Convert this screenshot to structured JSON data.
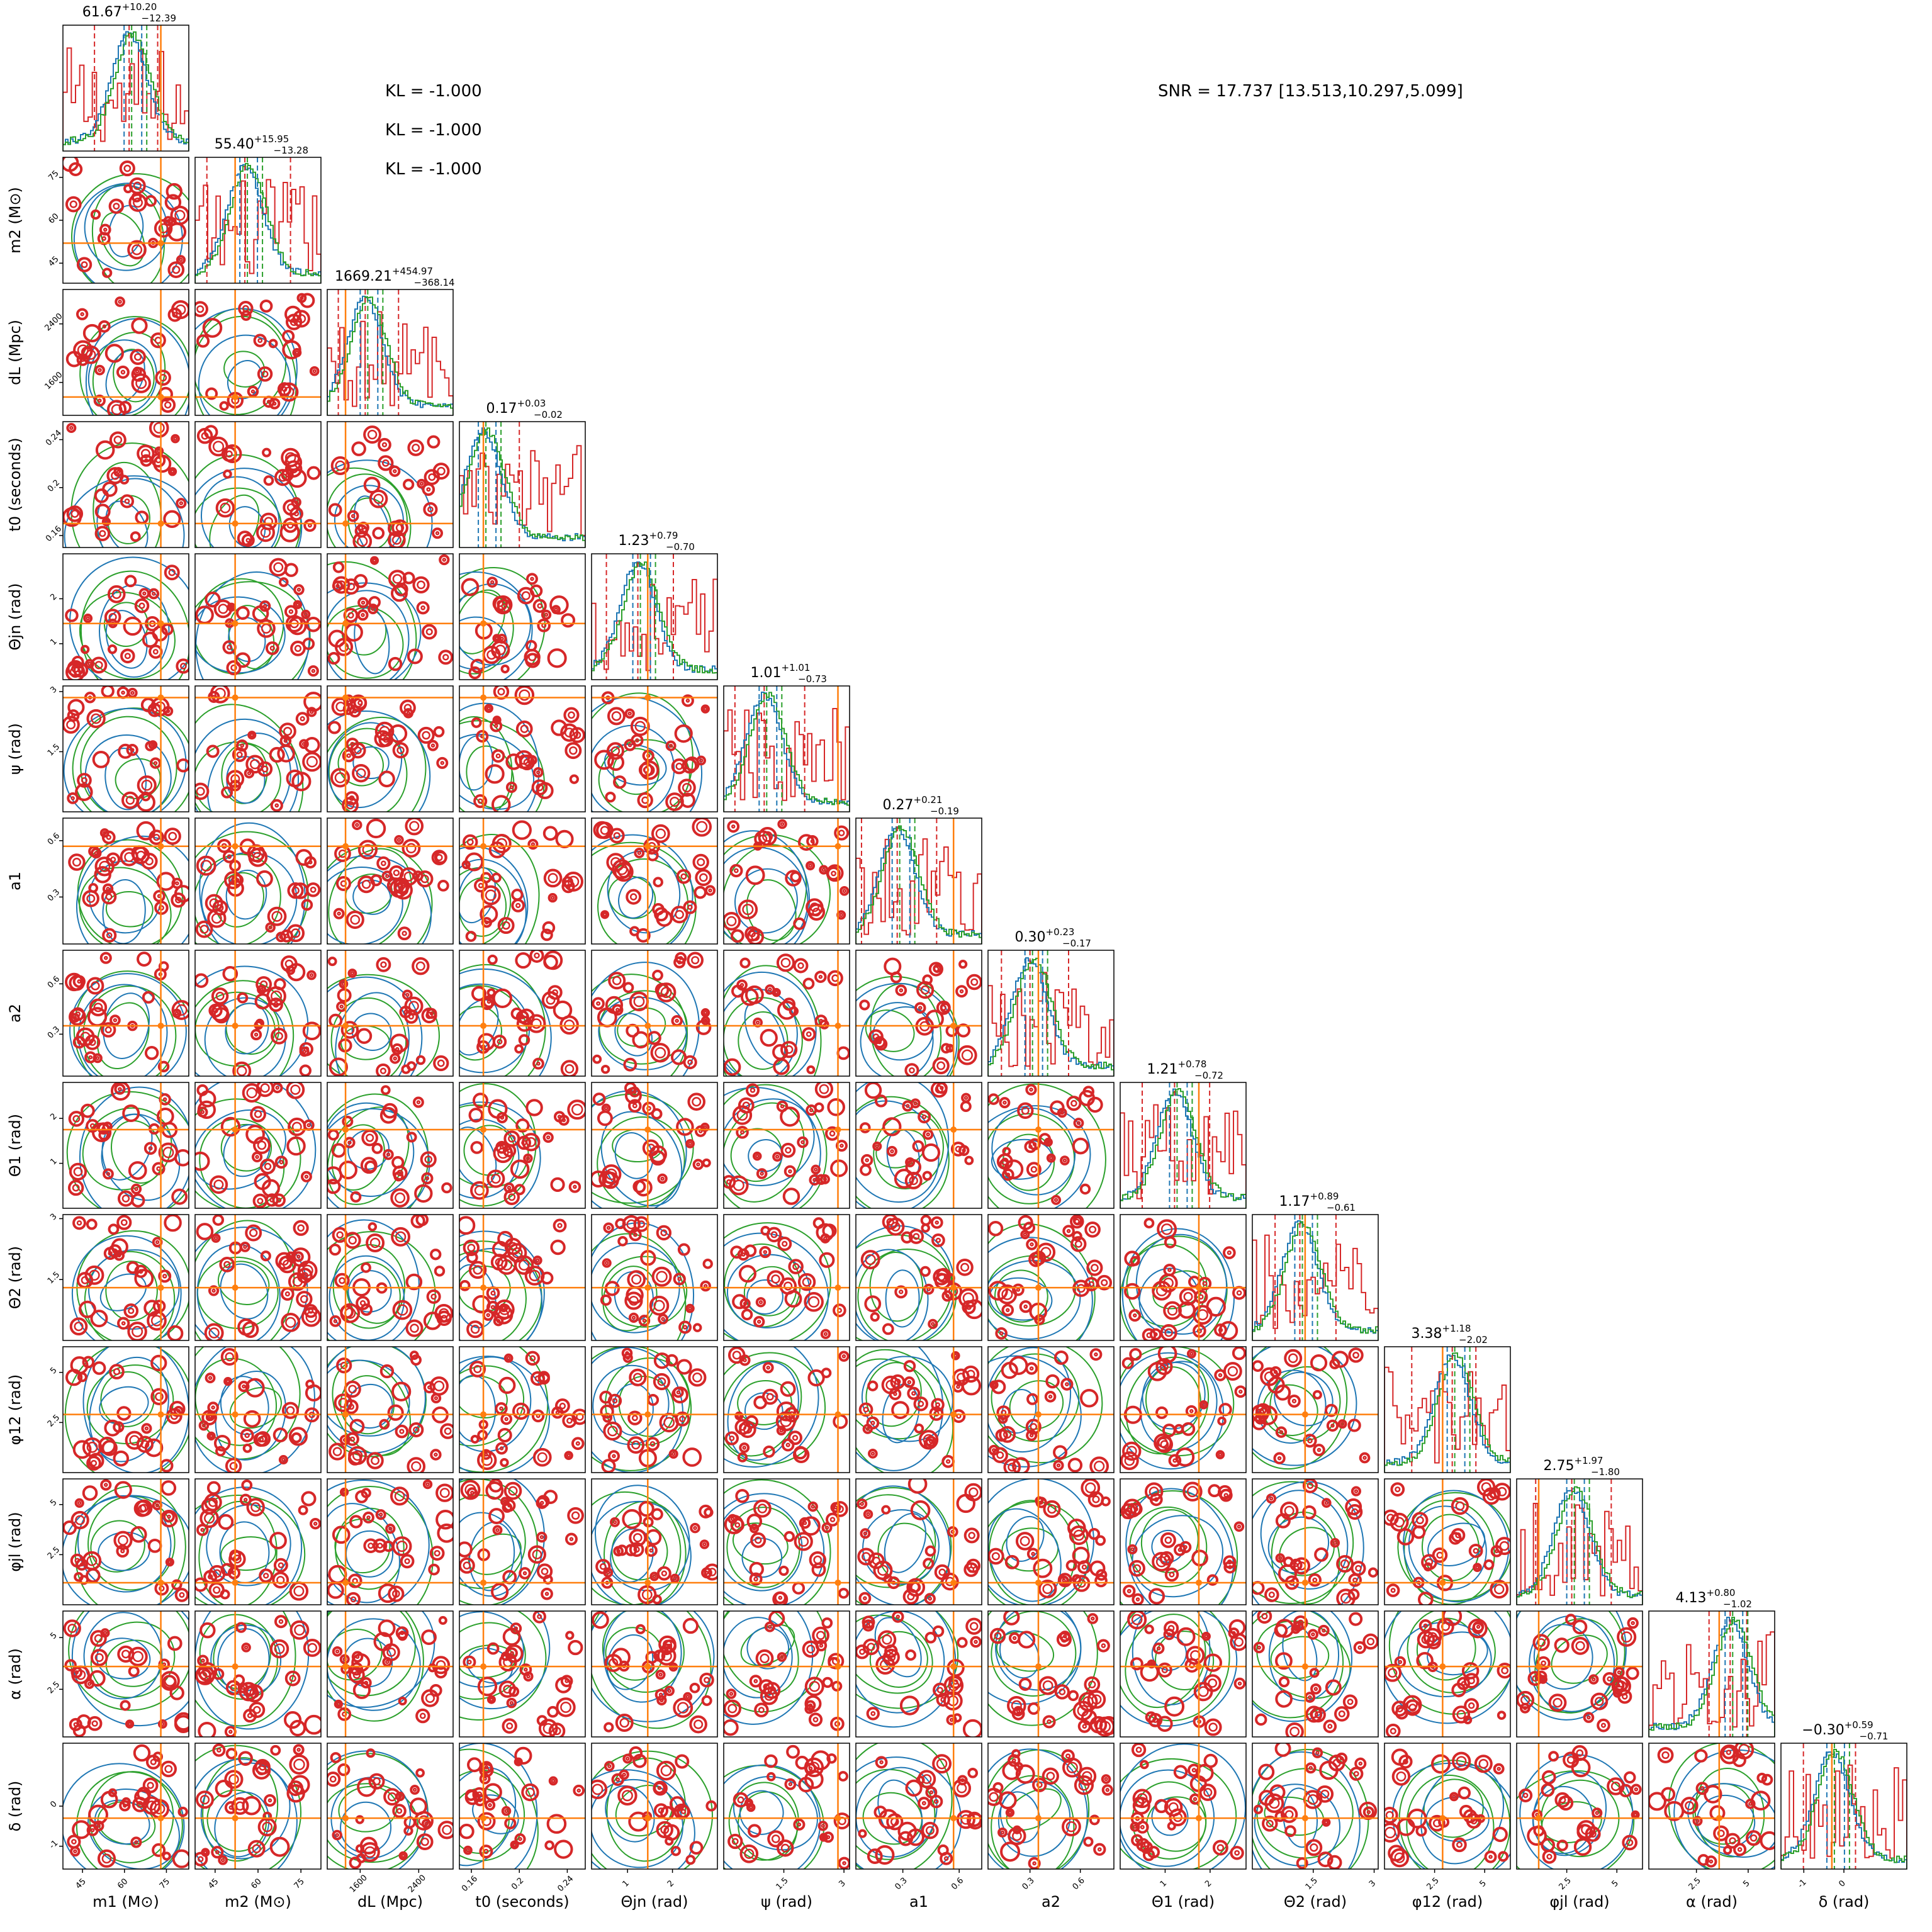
{
  "chart_data": {
    "type": "corner",
    "parameters": [
      {
        "label": "m1 (M⊙)",
        "tex_label": "$m_1\\,(\\mathrm{M}_{\\odot})$",
        "range": [
          38,
          83
        ],
        "ticks": [
          45,
          60,
          75
        ],
        "truth": 73,
        "summary": {
          "median": "61.67",
          "plus": "+10.20",
          "minus": "−12.39"
        }
      },
      {
        "label": "m2 (M⊙)",
        "tex_label": "$m_2\\,(\\mathrm{M}_{\\odot})$",
        "range": [
          38,
          82
        ],
        "ticks": [
          45,
          60,
          75
        ],
        "truth": 52,
        "summary": {
          "median": "55.40",
          "plus": "+15.95",
          "minus": "−13.28"
        }
      },
      {
        "label": "dL (Mpc)",
        "tex_label": "$d_L\\,(\\mathrm{Mpc})$",
        "range": [
          1150,
          2870
        ],
        "ticks": [
          1600,
          2400
        ],
        "truth": 1400,
        "summary": {
          "median": "1669.21",
          "plus": "+454.97",
          "minus": "−368.14"
        }
      },
      {
        "label": "t0 (seconds)",
        "tex_label": "$t_0\\,(\\mathrm{seconds})$",
        "range": [
          0.15,
          0.255
        ],
        "ticks": [
          0.16,
          0.2,
          0.24
        ],
        "truth": 0.17,
        "summary": {
          "median": "0.17",
          "plus": "+0.03",
          "minus": "−0.02"
        }
      },
      {
        "label": "Θjn (rad)",
        "tex_label": "$\\Theta_{jn}\\,(\\mathrm{rad})$",
        "range": [
          0.2,
          3.0
        ],
        "ticks": [
          1,
          2
        ],
        "truth": 1.45,
        "summary": {
          "median": "1.23",
          "plus": "+0.79",
          "minus": "−0.70"
        }
      },
      {
        "label": "ψ (rad)",
        "tex_label": "$\\psi\\,(\\mathrm{rad})$",
        "range": [
          0.0,
          3.14
        ],
        "ticks": [
          1.5,
          3.0
        ],
        "truth": 2.85,
        "summary": {
          "median": "1.01",
          "plus": "+1.01",
          "minus": "−0.73"
        }
      },
      {
        "label": "a1",
        "tex_label": "$a_1$",
        "range": [
          0.05,
          0.72
        ],
        "ticks": [
          0.3,
          0.6
        ],
        "truth": 0.57,
        "summary": {
          "median": "0.27",
          "plus": "+0.21",
          "minus": "−0.19"
        }
      },
      {
        "label": "a2",
        "tex_label": "$a_2$",
        "range": [
          0.05,
          0.8
        ],
        "ticks": [
          0.3,
          0.6
        ],
        "truth": 0.35,
        "summary": {
          "median": "0.30",
          "plus": "+0.23",
          "minus": "−0.17"
        }
      },
      {
        "label": "Θ1 (rad)",
        "tex_label": "$\\Theta_1\\,(\\mathrm{rad})$",
        "range": [
          0.0,
          2.8
        ],
        "ticks": [
          1,
          2
        ],
        "truth": 1.75,
        "summary": {
          "median": "1.21",
          "plus": "+0.78",
          "minus": "−0.72"
        }
      },
      {
        "label": "Θ2 (rad)",
        "tex_label": "$\\Theta_2\\,(\\mathrm{rad})$",
        "range": [
          0.0,
          3.1
        ],
        "ticks": [
          1.5,
          3.0
        ],
        "truth": 1.3,
        "summary": {
          "median": "1.17",
          "plus": "+0.89",
          "minus": "−0.61"
        }
      },
      {
        "label": "φ12 (rad)",
        "tex_label": "$\\phi_{12}\\,(\\mathrm{rad})$",
        "range": [
          0.0,
          6.28
        ],
        "ticks": [
          2.5,
          5.0
        ],
        "truth": 2.9,
        "summary": {
          "median": "3.38",
          "plus": "+1.18",
          "minus": "−2.02"
        }
      },
      {
        "label": "φjl (rad)",
        "tex_label": "$\\phi_{jl}\\,(\\mathrm{rad})$",
        "range": [
          0.0,
          6.28
        ],
        "ticks": [
          2.5,
          5.0
        ],
        "truth": 1.1,
        "summary": {
          "median": "2.75",
          "plus": "+1.97",
          "minus": "−1.80"
        }
      },
      {
        "label": "α (rad)",
        "tex_label": "$\\alpha\\,(\\mathrm{rad})$",
        "range": [
          0.2,
          6.28
        ],
        "ticks": [
          2.5,
          5.0
        ],
        "truth": 3.6,
        "summary": {
          "median": "4.13",
          "plus": "+0.80",
          "minus": "−1.02"
        }
      },
      {
        "label": "δ (rad)",
        "tex_label": "$\\delta\\,(\\mathrm{rad})$",
        "range": [
          -1.57,
          1.57
        ],
        "ticks": [
          -1,
          0
        ],
        "truth": -0.3,
        "summary": {
          "median": "−0.30",
          "plus": "+0.59",
          "minus": "−0.71"
        }
      }
    ],
    "series": [
      {
        "color": "#d62728"
      },
      {
        "color": "#1f77b4"
      },
      {
        "color": "#2ca02c"
      }
    ],
    "truth_color": "#ff7f0e"
  },
  "annotations": {
    "kl_lines": [
      "KL = -1.000",
      "KL = -1.000",
      "KL = -1.000"
    ],
    "snr": "SNR = 17.737 [13.513,10.297,5.099]"
  }
}
